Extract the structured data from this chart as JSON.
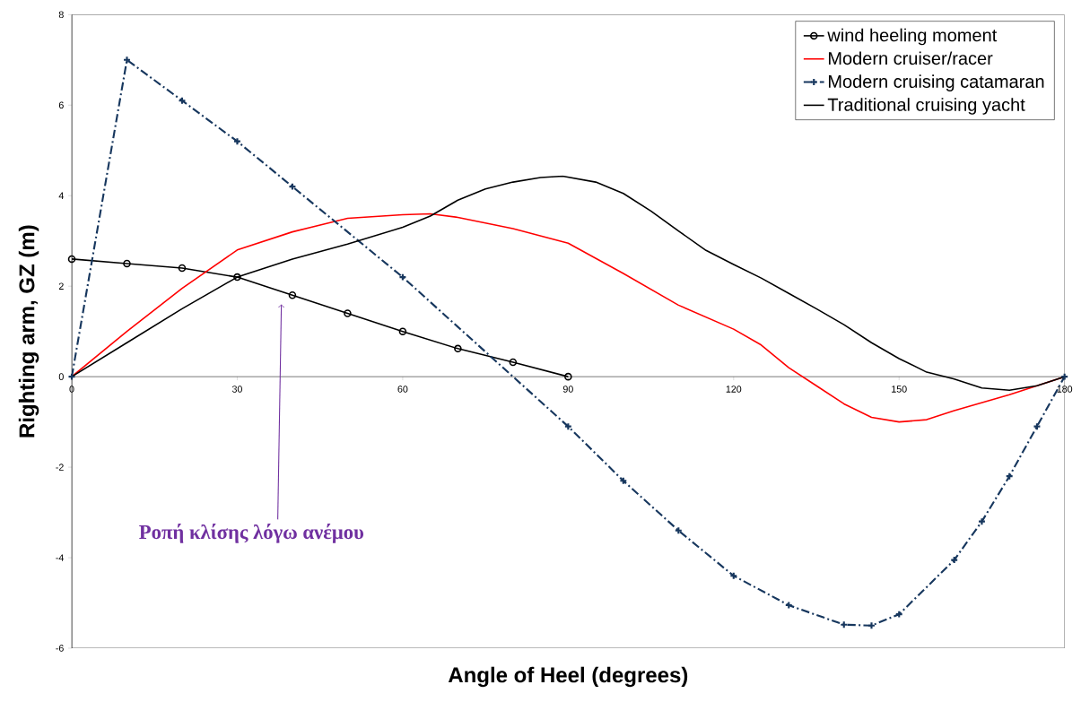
{
  "chart_data": {
    "type": "line",
    "xlabel": "Angle of Heel (degrees)",
    "ylabel": "Righting arm, GZ (m)",
    "xlim": [
      0,
      180
    ],
    "ylim": [
      -6,
      8
    ],
    "xticks": [
      0,
      30,
      60,
      90,
      120,
      150,
      180
    ],
    "yticks": [
      -6,
      -4,
      -2,
      0,
      2,
      4,
      6,
      8
    ],
    "grid": false,
    "legend": "top right",
    "series": [
      {
        "name": "wind heeling moment",
        "color": "#000000",
        "marker": "circle",
        "line_style": "solid",
        "x": [
          0,
          10,
          20,
          30,
          40,
          50,
          60,
          70,
          80,
          90
        ],
        "values": [
          2.6,
          2.5,
          2.4,
          2.2,
          1.8,
          1.4,
          1.0,
          0.62,
          0.32,
          0
        ]
      },
      {
        "name": "Modern cruiser/racer",
        "color": "#ff0000",
        "marker": "none",
        "line_style": "solid",
        "x": [
          0,
          10,
          20,
          30,
          40,
          50,
          60,
          65,
          70,
          80,
          90,
          100,
          110,
          120,
          125,
          130,
          135,
          140,
          145,
          150,
          155,
          160,
          170,
          180
        ],
        "values": [
          0,
          1.0,
          1.95,
          2.8,
          3.2,
          3.5,
          3.58,
          3.6,
          3.52,
          3.27,
          2.95,
          2.28,
          1.58,
          1.05,
          0.7,
          0.2,
          -0.2,
          -0.6,
          -0.9,
          -1.0,
          -0.95,
          -0.75,
          -0.4,
          0
        ]
      },
      {
        "name": "Modern cruising catamaran",
        "color": "#17375e",
        "marker": "cross",
        "line_style": "dashed",
        "x": [
          0,
          10,
          20,
          30,
          40,
          60,
          90,
          100,
          110,
          120,
          130,
          140,
          145,
          150,
          160,
          165,
          170,
          175,
          180
        ],
        "values": [
          0,
          7.0,
          6.1,
          5.2,
          4.2,
          2.2,
          -1.1,
          -2.3,
          -3.4,
          -4.4,
          -5.05,
          -5.48,
          -5.5,
          -5.25,
          -4.05,
          -3.2,
          -2.2,
          -1.1,
          0
        ]
      },
      {
        "name": "Traditional cruising yacht",
        "color": "#000000",
        "marker": "none",
        "line_style": "solid",
        "x": [
          0,
          10,
          20,
          25,
          30,
          40,
          50,
          60,
          65,
          70,
          75,
          80,
          85,
          89,
          95,
          100,
          105,
          110,
          115,
          120,
          125,
          130,
          135,
          140,
          145,
          150,
          155,
          160,
          165,
          170,
          175,
          180
        ],
        "values": [
          0,
          0.75,
          1.5,
          1.85,
          2.2,
          2.6,
          2.93,
          3.3,
          3.55,
          3.9,
          4.15,
          4.3,
          4.4,
          4.43,
          4.3,
          4.05,
          3.66,
          3.22,
          2.79,
          2.48,
          2.18,
          1.84,
          1.5,
          1.15,
          0.75,
          0.4,
          0.1,
          -0.05,
          -0.25,
          -0.3,
          -0.2,
          0
        ]
      }
    ],
    "annotations": [
      {
        "text": "Ροπή κλίσης λόγω ανέμου",
        "x": 38,
        "y": 1.6
      }
    ]
  }
}
